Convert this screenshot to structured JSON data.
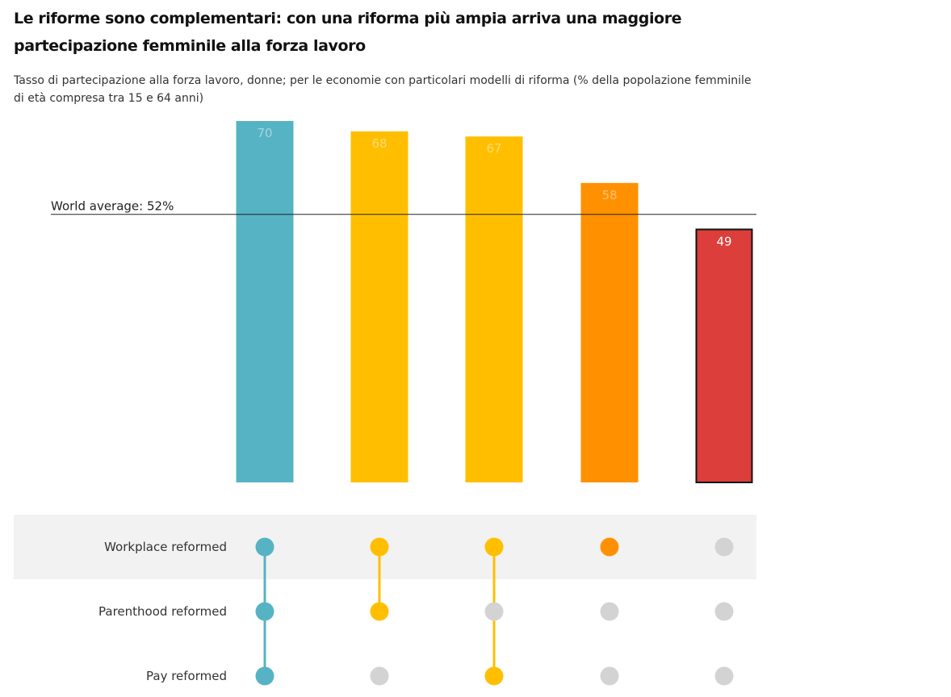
{
  "title": "Le riforme sono complementari: con una riforma più ampia arriva una maggiore partecipazione femminile alla forza lavoro",
  "subtitle": "Tasso di partecipazione alla forza lavoro, donne; per le economie con particolari modelli di riforma (% della popolazione femminile di età compresa tra 15 e 64 anni)",
  "chart_data": {
    "type": "bar",
    "values": [
      70,
      68,
      67,
      58,
      49
    ],
    "colors": [
      "#56b3c4",
      "#ffbf00",
      "#ffbf00",
      "#ff9100",
      "#db3e3b"
    ],
    "highlighted_bar": 4,
    "reference_line": {
      "label": "World average: 52%",
      "value": 52
    },
    "ylim": [
      0,
      72
    ],
    "grid": false,
    "matrix": {
      "rows": [
        "Workplace reformed",
        "Parenthood reformed",
        "Pay reformed"
      ],
      "filled": [
        [
          true,
          true,
          true
        ],
        [
          true,
          true,
          false
        ],
        [
          true,
          false,
          true
        ],
        [
          true,
          false,
          false
        ],
        [
          false,
          false,
          false
        ]
      ],
      "inactive_color": "#d3d3d3"
    }
  }
}
